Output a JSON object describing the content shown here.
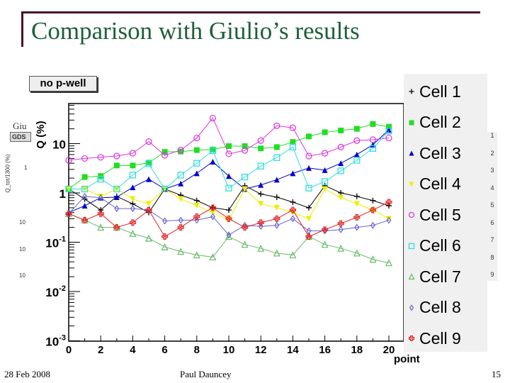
{
  "slide": {
    "title": "Comparison with Giulio’s results",
    "footer_date": "28 Feb 2008",
    "footer_author": "Paul Dauncey",
    "page_number": "15",
    "ghost_text": {
      "giu": "Giu",
      "gds": "GDS",
      "ylabel": "Q_tot/1300 (%)",
      "tick_1": "1",
      "tick_10a": "10",
      "tick_10b": "10",
      "tick_10c": "10"
    },
    "ghost_legend": [
      "1",
      "2",
      "3",
      "4",
      "5",
      "6",
      "7",
      "8",
      "9"
    ]
  },
  "chart_data": {
    "type": "line",
    "title": "no p-well",
    "xlabel": "point",
    "ylabel": "Q (%)",
    "yscale": "log",
    "ylim": [
      0.001,
      65
    ],
    "xlim": [
      0,
      21
    ],
    "x_ticks": [
      0,
      2,
      4,
      6,
      8,
      10,
      12,
      14,
      16,
      18,
      20
    ],
    "y_ticks": [
      {
        "v": 0.001,
        "label": "10^-3"
      },
      {
        "v": 0.01,
        "label": "10^-2"
      },
      {
        "v": 0.1,
        "label": "10^-1"
      },
      {
        "v": 1,
        "label": "1"
      },
      {
        "v": 10,
        "label": "10"
      }
    ],
    "legend_position": "right",
    "x": [
      0,
      1,
      2,
      3,
      4,
      5,
      6,
      7,
      8,
      9,
      10,
      11,
      12,
      13,
      14,
      15,
      16,
      17,
      18,
      19,
      20
    ],
    "series": [
      {
        "name": "Cell 1",
        "marker": "plus",
        "color": "#000000",
        "values": [
          1.2,
          0.75,
          0.45,
          0.85,
          0.6,
          0.4,
          1.2,
          0.9,
          0.7,
          0.5,
          0.45,
          1.4,
          0.95,
          0.82,
          0.65,
          0.5,
          1.4,
          1.0,
          0.85,
          0.7,
          0.55
        ]
      },
      {
        "name": "Cell 2",
        "marker": "square-filled",
        "color": "#22dd22",
        "values": [
          1.2,
          2.1,
          2.2,
          3.6,
          3.6,
          4.1,
          6.8,
          6.9,
          7.4,
          7.6,
          8.9,
          8.9,
          8.0,
          8.5,
          10.8,
          14.0,
          17.0,
          18.5,
          20.0,
          25.0,
          22.0
        ]
      },
      {
        "name": "Cell 3",
        "marker": "triangle-up-filled",
        "color": "#0000cc",
        "values": [
          0.4,
          0.55,
          0.8,
          0.82,
          1.3,
          1.9,
          1.2,
          1.55,
          2.5,
          4.3,
          2.2,
          1.2,
          1.45,
          1.85,
          2.5,
          3.2,
          2.9,
          4.0,
          6.0,
          9.5,
          19.0
        ]
      },
      {
        "name": "Cell 4",
        "marker": "triangle-down-filled",
        "color": "#eeee00",
        "values": [
          1.2,
          1.2,
          0.85,
          1.2,
          0.75,
          0.6,
          1.2,
          0.75,
          0.55,
          0.4,
          0.28,
          1.2,
          0.6,
          0.5,
          0.4,
          0.3,
          1.2,
          0.8,
          0.6,
          0.45,
          0.3
        ]
      },
      {
        "name": "Cell 5",
        "marker": "circle-open",
        "color": "#dd33dd",
        "values": [
          4.6,
          5.0,
          5.3,
          5.6,
          6.4,
          11.0,
          5.8,
          7.4,
          13.0,
          33.0,
          6.2,
          7.3,
          11.5,
          23.0,
          21.0,
          5.6,
          6.4,
          8.5,
          11.5,
          12.0,
          13.0
        ]
      },
      {
        "name": "Cell 6",
        "marker": "square-open",
        "color": "#33dddd",
        "values": [
          1.2,
          1.2,
          1.9,
          1.2,
          2.3,
          3.9,
          1.2,
          2.3,
          4.0,
          7.2,
          1.25,
          2.1,
          3.5,
          5.2,
          8.5,
          1.25,
          1.7,
          2.8,
          4.6,
          8.0,
          18.0
        ]
      },
      {
        "name": "Cell 7",
        "marker": "triangle-up-open",
        "color": "#66bb66",
        "values": [
          0.38,
          0.28,
          0.2,
          0.2,
          0.15,
          0.12,
          0.08,
          0.065,
          0.055,
          0.05,
          0.13,
          0.09,
          0.075,
          0.06,
          0.055,
          0.13,
          0.09,
          0.075,
          0.06,
          0.045,
          0.038
        ]
      },
      {
        "name": "Cell 8",
        "marker": "diamond-open",
        "color": "#6666cc",
        "values": [
          0.38,
          0.85,
          0.8,
          0.48,
          0.48,
          0.45,
          0.27,
          0.28,
          0.28,
          0.33,
          0.14,
          0.22,
          0.21,
          0.22,
          0.3,
          0.17,
          0.17,
          0.18,
          0.2,
          0.22,
          0.28
        ]
      },
      {
        "name": "Cell 9",
        "marker": "plus-open",
        "color": "#dd2222",
        "values": [
          0.38,
          0.28,
          0.38,
          0.2,
          0.25,
          0.45,
          0.13,
          0.2,
          0.33,
          0.5,
          0.3,
          0.2,
          0.25,
          0.3,
          0.45,
          0.13,
          0.18,
          0.24,
          0.32,
          0.45,
          0.65
        ]
      }
    ]
  }
}
